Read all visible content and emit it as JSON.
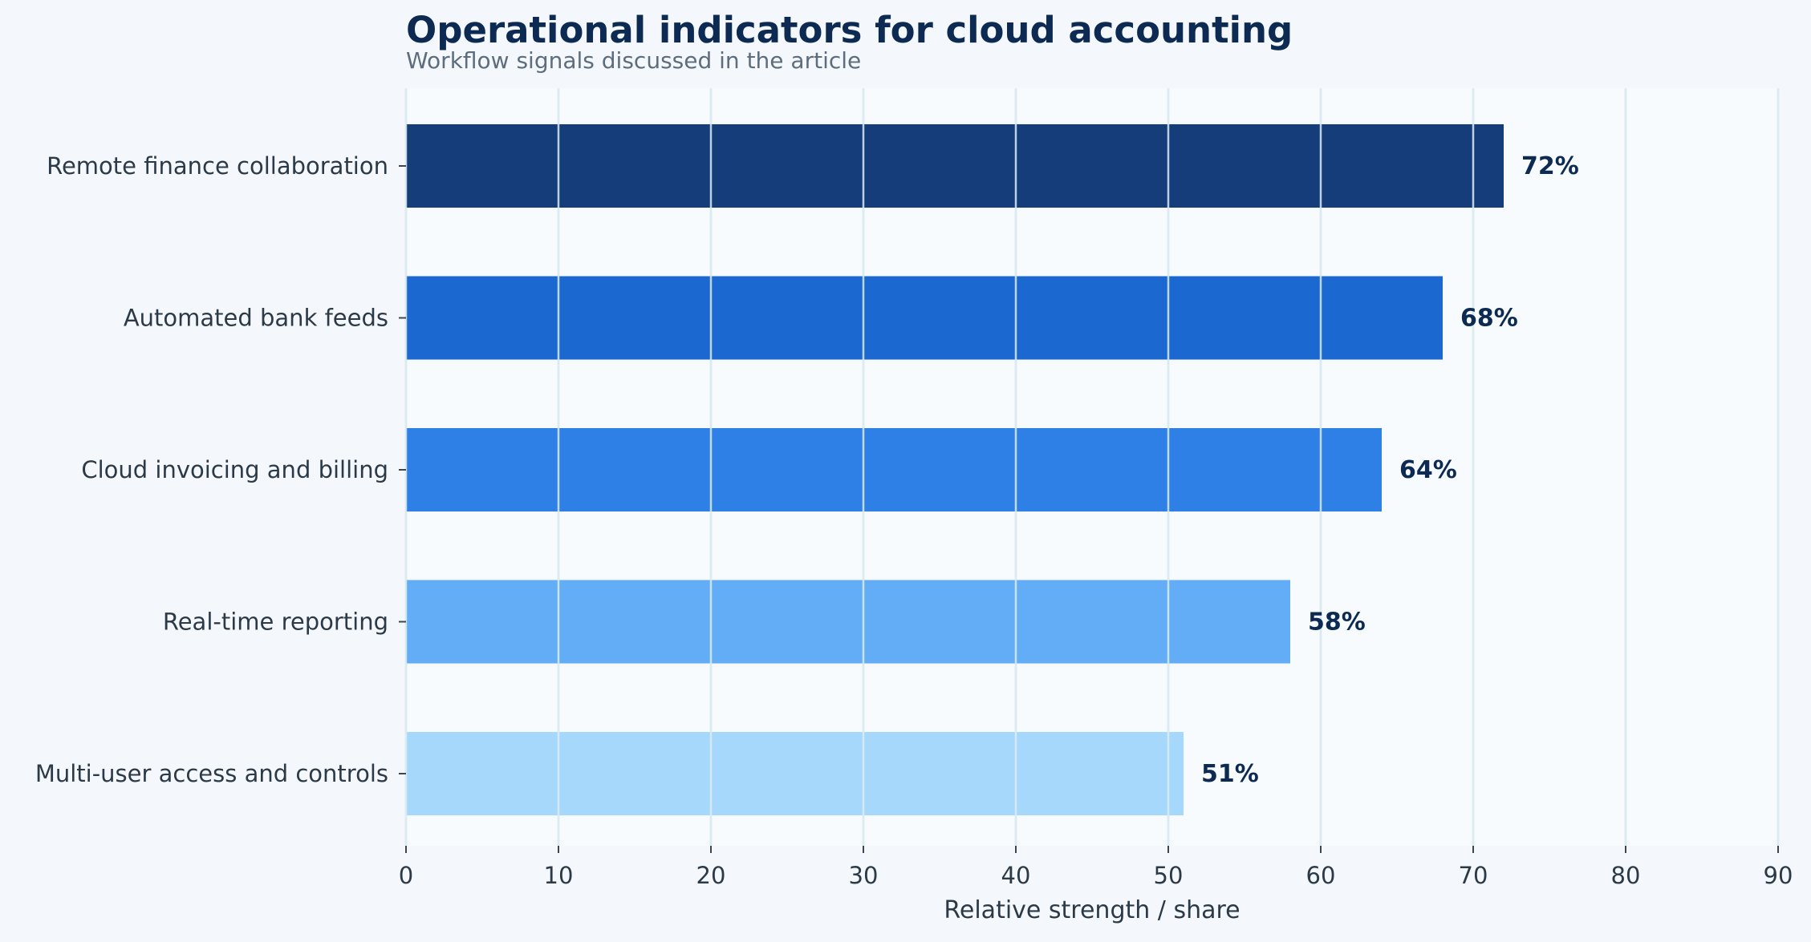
{
  "chart_data": {
    "type": "bar",
    "orientation": "horizontal",
    "title": "Operational indicators for cloud accounting",
    "subtitle": "Workflow signals discussed in the article",
    "xlabel": "Relative strength / share",
    "ylabel": "",
    "xlim": [
      0,
      90
    ],
    "xticks": [
      0,
      10,
      20,
      30,
      40,
      50,
      60,
      70,
      80,
      90
    ],
    "grid": true,
    "legend": "none",
    "categories": [
      "Remote finance collaboration",
      "Automated bank feeds",
      "Cloud invoicing and billing",
      "Real-time reporting",
      "Multi-user access and controls"
    ],
    "values": [
      72,
      68,
      64,
      58,
      51
    ],
    "value_labels": [
      "72%",
      "68%",
      "64%",
      "58%",
      "51%"
    ],
    "bar_colors": [
      "#143d7a",
      "#1b68d0",
      "#2f80e6",
      "#62adf5",
      "#a6d8fc"
    ]
  },
  "colors": {
    "background": "#f4f8fc",
    "plot_background": "#f7fbfe",
    "grid": "#d6e6ec",
    "title": "#0d2a52",
    "subtitle": "#5d6d7d",
    "tick_text": "#2c3a48",
    "value_label": "#0d2a52"
  }
}
